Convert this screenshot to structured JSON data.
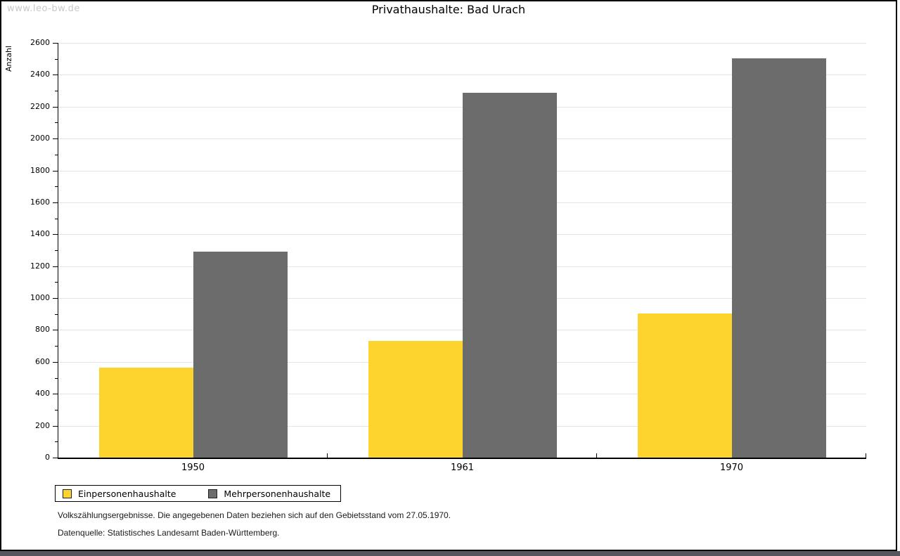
{
  "watermark": "www.leo-bw.de",
  "chart_data": {
    "type": "bar",
    "title": "Privathaushalte: Bad Urach",
    "ylabel": "Anzahl",
    "xlabel": "",
    "categories": [
      "1950",
      "1961",
      "1970"
    ],
    "series": [
      {
        "name": "Einpersonenhaushalte",
        "color": "#fcd42d",
        "values": [
          565,
          730,
          905
        ]
      },
      {
        "name": "Mehrpersonenhaushalte",
        "color": "#6c6c6c",
        "values": [
          1290,
          2285,
          2505
        ]
      }
    ],
    "ylim": [
      0,
      2600
    ],
    "ytick_step": 200,
    "minor_tick_step": 100,
    "grid": true,
    "legend_position": "bottom-left"
  },
  "footer": {
    "note1": "Volkszählungsergebnisse. Die angegebenen Daten beziehen sich auf den Gebietsstand vom 27.05.1970.",
    "note2": "Datenquelle: Statistisches Landesamt Baden-Württemberg."
  }
}
